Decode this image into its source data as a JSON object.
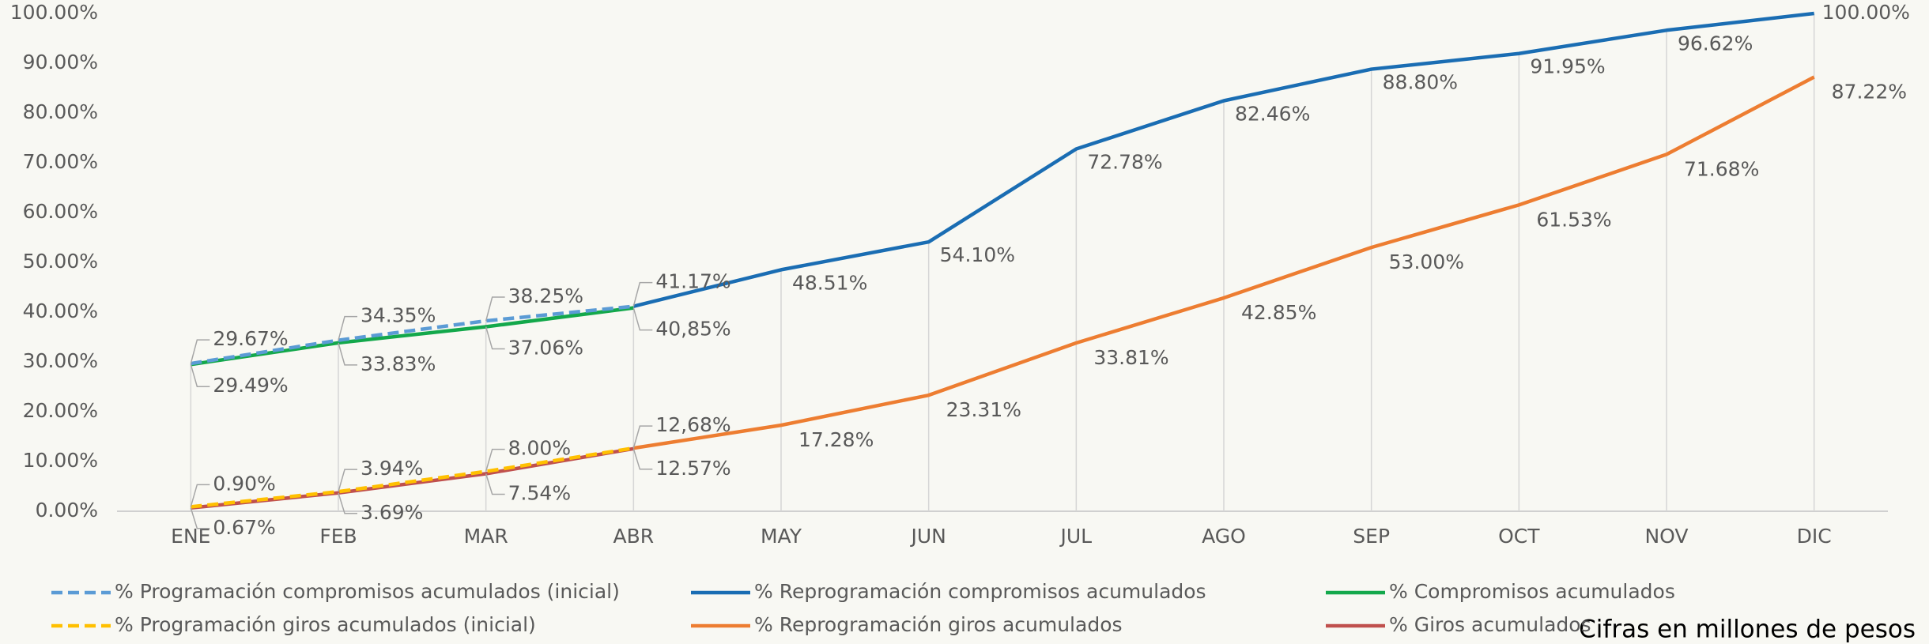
{
  "chart_data": {
    "type": "line",
    "categories": [
      "ENE",
      "FEB",
      "MAR",
      "ABR",
      "MAY",
      "JUN",
      "JUL",
      "AGO",
      "SEP",
      "OCT",
      "NOV",
      "DIC"
    ],
    "ylim": [
      0,
      100
    ],
    "yticks": [
      {
        "value": 0,
        "label": "0.00%"
      },
      {
        "value": 10,
        "label": "10.00%"
      },
      {
        "value": 20,
        "label": "20.00%"
      },
      {
        "value": 30,
        "label": "30.00%"
      },
      {
        "value": 40,
        "label": "40.00%"
      },
      {
        "value": 50,
        "label": "50.00%"
      },
      {
        "value": 60,
        "label": "60.00%"
      },
      {
        "value": 70,
        "label": "70.00%"
      },
      {
        "value": 80,
        "label": "80.00%"
      },
      {
        "value": 90,
        "label": "90.00%"
      },
      {
        "value": 100,
        "label": "100.00%"
      }
    ],
    "series": [
      {
        "name": "% Programación compromisos acumulados (inicial)",
        "color": "#5b9bd5",
        "dashed": true,
        "values": [
          29.67,
          34.35,
          38.25,
          41.17,
          null,
          null,
          null,
          null,
          null,
          null,
          null,
          null
        ],
        "value_labels": [
          "29.67%",
          "34.35%",
          "38.25%",
          "41.17%",
          null,
          null,
          null,
          null,
          null,
          null,
          null,
          null
        ]
      },
      {
        "name": "% Reprogramación compromisos acumulados",
        "color": "#1a6db3",
        "dashed": false,
        "values": [
          null,
          null,
          null,
          41.17,
          48.51,
          54.1,
          72.78,
          82.46,
          88.8,
          91.95,
          96.62,
          100.0
        ],
        "value_labels": [
          null,
          null,
          null,
          null,
          "48.51%",
          "54.10%",
          "72.78%",
          "82.46%",
          "88.80%",
          "91.95%",
          "96.62%",
          "100.00%"
        ]
      },
      {
        "name": "% Compromisos acumulados",
        "color": "#13a84b",
        "dashed": false,
        "values": [
          29.49,
          33.83,
          37.06,
          40.85,
          null,
          null,
          null,
          null,
          null,
          null,
          null,
          null
        ],
        "value_labels": [
          "29.49%",
          "33.83%",
          "37.06%",
          "40,85%",
          null,
          null,
          null,
          null,
          null,
          null,
          null,
          null
        ]
      },
      {
        "name": "% Programación giros acumulados (inicial)",
        "color": "#ffc000",
        "dashed": true,
        "values": [
          0.9,
          3.94,
          8.0,
          12.68,
          null,
          null,
          null,
          null,
          null,
          null,
          null,
          null
        ],
        "value_labels": [
          "0.90%",
          "3.94%",
          "8.00%",
          "12,68%",
          null,
          null,
          null,
          null,
          null,
          null,
          null,
          null
        ]
      },
      {
        "name": "% Reprogramación giros acumulados",
        "color": "#ed7d31",
        "dashed": false,
        "values": [
          null,
          null,
          null,
          12.68,
          17.28,
          23.31,
          33.81,
          42.85,
          53.0,
          61.53,
          71.68,
          87.22
        ],
        "value_labels": [
          null,
          null,
          null,
          null,
          "17.28%",
          "23.31%",
          "33.81%",
          "42.85%",
          "53.00%",
          "61.53%",
          "71.68%",
          "87.22%"
        ]
      },
      {
        "name": "% Giros acumulados",
        "color": "#c0504d",
        "dashed": false,
        "values": [
          0.67,
          3.69,
          7.54,
          12.57,
          null,
          null,
          null,
          null,
          null,
          null,
          null,
          null
        ],
        "value_labels": [
          "0.67%",
          "3.69%",
          "7.54%",
          "12.57%",
          null,
          null,
          null,
          null,
          null,
          null,
          null,
          null
        ]
      }
    ],
    "note": "Cifras en millones de pesos"
  }
}
